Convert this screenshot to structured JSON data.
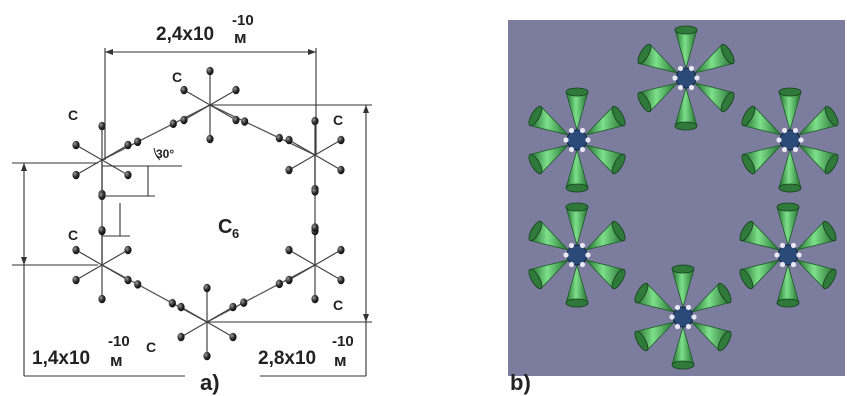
{
  "figure_a": {
    "panel_label": "a)",
    "center_label": "C",
    "center_subscript": "6",
    "atom_labels": [
      "C",
      "C",
      "C",
      "C",
      "C",
      "C"
    ],
    "angle_label": "30°",
    "dimensions": {
      "top": {
        "mantissa": "2,4x10",
        "exponent": "-10",
        "unit": "м"
      },
      "left": {
        "mantissa": "1,4x10",
        "exponent": "-10",
        "unit": "м"
      },
      "right": {
        "mantissa": "2,8x10",
        "exponent": "-10",
        "unit": "м"
      }
    }
  },
  "figure_b": {
    "panel_label": "b)",
    "background_color": "#7c7c9e",
    "cone_color": "#56c46a",
    "core_color": "#2c4a78"
  }
}
